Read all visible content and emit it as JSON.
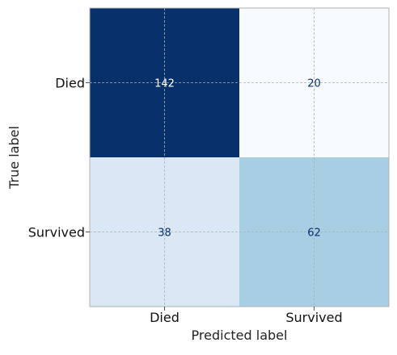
{
  "chart_data": {
    "type": "heatmap",
    "title": "",
    "xlabel": "Predicted label",
    "ylabel": "True label",
    "x_categories": [
      "Died",
      "Survived"
    ],
    "y_categories": [
      "Died",
      "Survived"
    ],
    "values": [
      [
        142,
        20
      ],
      [
        38,
        62
      ]
    ],
    "colormap": "Blues",
    "color_range": [
      20,
      142
    ],
    "grid": true,
    "colorbar": false
  }
}
